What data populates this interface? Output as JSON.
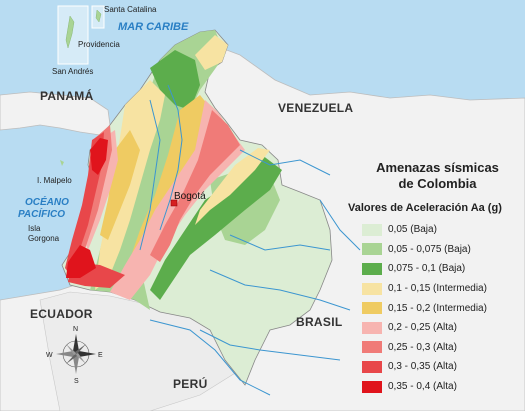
{
  "map": {
    "sea_labels": {
      "caribbean": "MAR CARIBE",
      "pacific_line1": "OCÉANO",
      "pacific_line2": "PACÍFICO"
    },
    "countries": {
      "panama": "PANAMÁ",
      "venezuela": "VENEZUELA",
      "ecuador": "ECUADOR",
      "brasil": "BRASIL",
      "peru": "PERÚ"
    },
    "places": {
      "santa_catalina": "Santa Catalina",
      "providencia": "Providencia",
      "san_andres": "San Andrés",
      "malpelo": "I. Malpelo",
      "gorgona_line1": "Isla",
      "gorgona_line2": "Gorgona",
      "bogota": "Bogotá"
    },
    "compass": {
      "n": "N",
      "s": "S",
      "e": "E",
      "w": "W"
    }
  },
  "legend": {
    "title_line1": "Amenazas sísmicas",
    "title_line2": "de Colombia",
    "subtitle": "Valores de Aceleración Aa (g)",
    "items": [
      {
        "label": "0,05 (Baja)",
        "color": "#dcedd4"
      },
      {
        "label": "0,05 - 0,075 (Baja)",
        "color": "#a9d494"
      },
      {
        "label": "0,075 - 0,1 (Baja)",
        "color": "#5cad4c"
      },
      {
        "label": "0,1 - 0,15 (Intermedia)",
        "color": "#f7e3a2"
      },
      {
        "label": "0,15 - 0,2 (Intermedia)",
        "color": "#efcb62"
      },
      {
        "label": "0,2 - 0,25 (Alta)",
        "color": "#f7b4b0"
      },
      {
        "label": "0,25 - 0,3 (Alta)",
        "color": "#f07b78"
      },
      {
        "label": "0,3 - 0,35 (Alta)",
        "color": "#e8474a"
      },
      {
        "label": "0,35 - 0,4 (Alta)",
        "color": "#e0141c"
      }
    ]
  },
  "colors": {
    "sea": "#b8dcf2",
    "land": "#f2f2f2",
    "river": "#3c96d0",
    "capital": "#d62020"
  }
}
